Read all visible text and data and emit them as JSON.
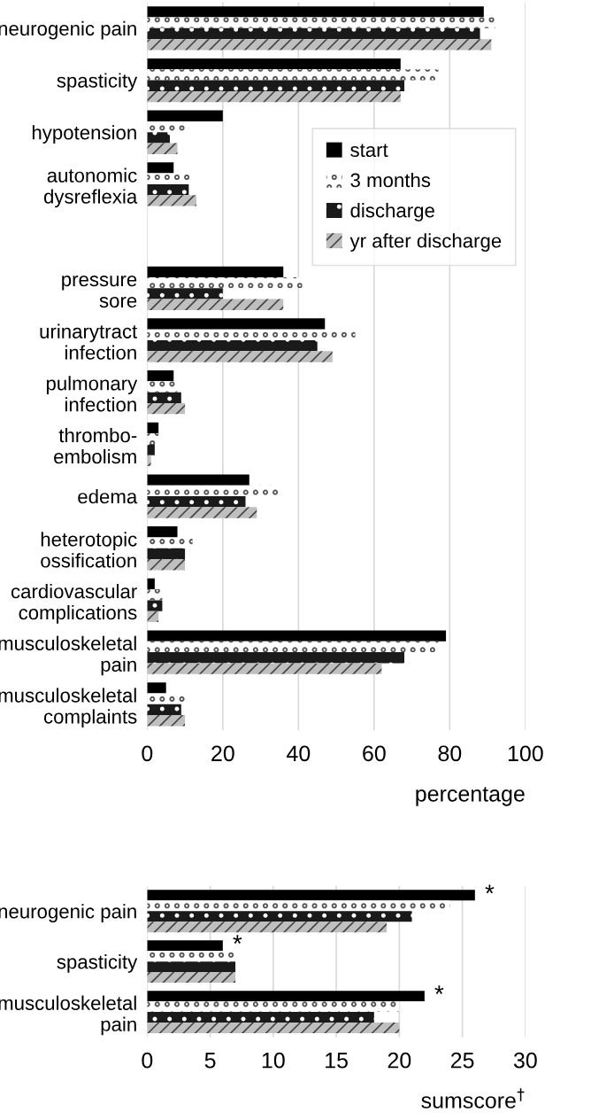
{
  "chart_data": [
    {
      "type": "bar",
      "orientation": "horizontal",
      "xlabel": "percentage",
      "grid": "x",
      "legend": "top right",
      "categories": [
        "neurogenic pain",
        "spasticity",
        "hypotension",
        "autonomic\ndysreflexia",
        null,
        "pressure\nsore",
        "urinarytract\ninfection",
        "pulmonary\ninfection",
        "thrombo-\nembolism",
        "edema",
        "heterotopic\nossification",
        "cardiovascular\ncomplications",
        "musculoskeletal\npain",
        "musculoskeletal\ncomplaints"
      ],
      "xlim": [
        0,
        100
      ],
      "xticks": [
        0,
        20,
        40,
        60,
        80,
        100
      ],
      "series": [
        {
          "name": "start",
          "color": "#000000",
          "values": [
            89,
            67,
            20,
            7,
            null,
            36,
            47,
            7,
            3,
            27,
            8,
            2,
            79,
            5
          ]
        },
        {
          "name": "3 months",
          "color": "#ffffff",
          "values": [
            92,
            77,
            11,
            12,
            null,
            41,
            55,
            8,
            3,
            35,
            12,
            4,
            77,
            10
          ]
        },
        {
          "name": "discharge",
          "color": "#1a1a1a",
          "values": [
            88,
            68,
            6,
            11,
            null,
            20,
            45,
            9,
            2,
            26,
            10,
            4,
            68,
            9
          ]
        },
        {
          "name": "yr after discharge",
          "color": "#bfbfbf",
          "values": [
            91,
            67,
            8,
            13,
            null,
            36,
            49,
            10,
            1,
            29,
            10,
            3,
            62,
            10
          ]
        }
      ]
    },
    {
      "type": "bar",
      "orientation": "horizontal",
      "xlabel": "sumscore$^{†}$",
      "grid": "x",
      "categories": [
        "neurogenic pain",
        "spasticity",
        "musculoskeletal\npain"
      ],
      "xlim": [
        0,
        30
      ],
      "xticks": [
        0,
        5,
        10,
        15,
        20,
        25,
        30
      ],
      "annotations": [
        "*",
        "*",
        "*"
      ],
      "series": [
        {
          "color": "#000000",
          "values": [
            26,
            6,
            22
          ]
        },
        {
          "color": "#ffffff",
          "values": [
            24,
            7,
            20
          ]
        },
        {
          "color": "#1a1a1a",
          "values": [
            21,
            7,
            18
          ]
        },
        {
          "color": "#bfbfbf",
          "values": [
            19,
            7,
            20
          ]
        }
      ]
    }
  ]
}
